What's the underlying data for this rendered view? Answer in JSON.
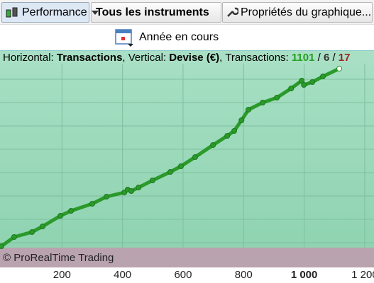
{
  "toolbar": {
    "performance": "Performance",
    "instruments": "Tous les instruments",
    "properties": "Propriétés du graphique..."
  },
  "period": "Année en cours",
  "info_bar": {
    "h_label": "Horizontal: ",
    "h_value": "Transactions",
    "v_label": ", Vertical: ",
    "v_value": "Devise (€)",
    "t_label": ", Transactions: ",
    "total": 1101,
    "sep1": " / ",
    "middle": 6,
    "sep2": " / ",
    "last": 17
  },
  "footer": "© ProRealTime Trading",
  "chart_data": {
    "type": "line",
    "color": "#2a9a2a",
    "x": [
      0,
      42,
      101,
      136,
      195,
      230,
      300,
      347,
      406,
      417,
      429,
      453,
      499,
      558,
      593,
      640,
      699,
      746,
      769,
      793,
      816,
      863,
      910,
      957,
      992,
      999,
      1027,
      1062,
      1116
    ],
    "values": [
      2,
      15,
      22,
      30,
      45,
      52,
      62,
      72,
      78,
      82,
      80,
      85,
      95,
      107,
      115,
      128,
      145,
      158,
      165,
      180,
      195,
      205,
      212,
      225,
      236,
      230,
      234,
      242,
      253
    ],
    "xlim": [
      0,
      1226
    ],
    "ylim": [
      0,
      260
    ],
    "xticks": [
      200,
      400,
      600,
      800,
      {
        "value": 1000,
        "label": "1 000"
      },
      {
        "value": 1200,
        "label": "1 200"
      }
    ],
    "bold_xtick": 1000,
    "grid": true
  }
}
